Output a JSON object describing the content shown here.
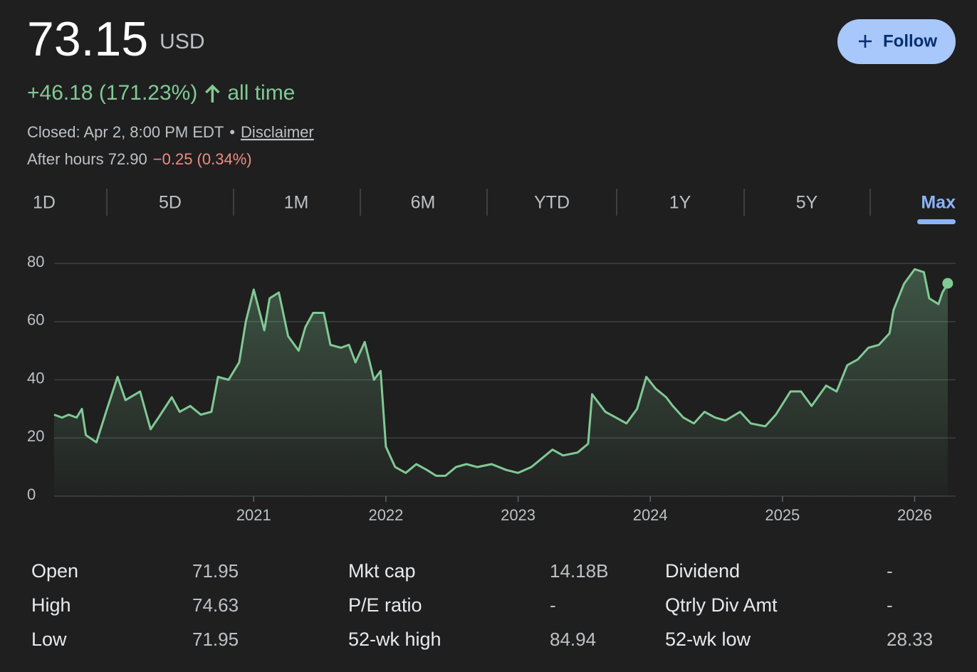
{
  "header": {
    "price": "73.15",
    "currency": "USD",
    "change": "+46.18 (171.23%)",
    "period": "all time",
    "closed": "Closed: Apr 2, 8:00 PM EDT",
    "separator": "•",
    "disclaimer": "Disclaimer",
    "after_hours": "After hours 72.90",
    "after_hours_change": "−0.25 (0.34%)",
    "follow": "Follow"
  },
  "tabs": {
    "items": [
      "1D",
      "5D",
      "1M",
      "6M",
      "YTD",
      "1Y",
      "5Y",
      "Max"
    ],
    "active": 7
  },
  "chart_data": {
    "type": "line",
    "color": "#81c995",
    "grid": true,
    "x": [
      2019.49,
      2019.55,
      2019.6,
      2019.66,
      2019.7,
      2019.73,
      2019.81,
      2019.89,
      2019.97,
      2020.03,
      2020.14,
      2020.22,
      2020.28,
      2020.38,
      2020.44,
      2020.52,
      2020.6,
      2020.68,
      2020.73,
      2020.81,
      2020.89,
      2020.94,
      2021.0,
      2021.08,
      2021.12,
      2021.19,
      2021.26,
      2021.34,
      2021.39,
      2021.45,
      2021.53,
      2021.58,
      2021.66,
      2021.72,
      2021.77,
      2021.84,
      2021.91,
      2021.96,
      2022.0,
      2022.07,
      2022.15,
      2022.23,
      2022.31,
      2022.38,
      2022.45,
      2022.53,
      2022.61,
      2022.69,
      2022.8,
      2022.91,
      2023.0,
      2023.1,
      2023.18,
      2023.26,
      2023.34,
      2023.45,
      2023.53,
      2023.56,
      2023.66,
      2023.74,
      2023.82,
      2023.9,
      2023.97,
      2024.04,
      2024.12,
      2024.17,
      2024.25,
      2024.33,
      2024.41,
      2024.49,
      2024.57,
      2024.68,
      2024.76,
      2024.87,
      2024.95,
      2025.06,
      2025.14,
      2025.22,
      2025.33,
      2025.41,
      2025.49,
      2025.57,
      2025.65,
      2025.73,
      2025.81,
      2025.84,
      2025.92,
      2026.0,
      2026.07,
      2026.11,
      2026.18,
      2026.21,
      2026.25
    ],
    "values": [
      28,
      27,
      28,
      27,
      30,
      21,
      18.5,
      30,
      41,
      33,
      36,
      23,
      27,
      34,
      29,
      31,
      28,
      29,
      41,
      40,
      46,
      60,
      71,
      57,
      68,
      70,
      55,
      50,
      58,
      63,
      63,
      52,
      51,
      52,
      46,
      53,
      40,
      43,
      17,
      10,
      8,
      11,
      9,
      7,
      7,
      10,
      11,
      10,
      11,
      9,
      8,
      10,
      13,
      16,
      14,
      15,
      18,
      35,
      29,
      27,
      25,
      30,
      41,
      37,
      34,
      31,
      27,
      25,
      29,
      27,
      26,
      29,
      25,
      24,
      28,
      36,
      36,
      31,
      38,
      36,
      45,
      47,
      51,
      52,
      56,
      64,
      73,
      78,
      77,
      68,
      66,
      70,
      73.15
    ],
    "xlim": [
      2019.49,
      2026.31
    ],
    "xticks": [
      2021,
      2022,
      2023,
      2024,
      2025,
      2026
    ],
    "ylim": [
      0,
      80
    ],
    "yticks": [
      0,
      20,
      40,
      60,
      80
    ]
  },
  "stats": [
    [
      [
        "Open",
        "71.95"
      ],
      [
        "High",
        "74.63"
      ],
      [
        "Low",
        "71.95"
      ]
    ],
    [
      [
        "Mkt cap",
        "14.18B"
      ],
      [
        "P/E ratio",
        "-"
      ],
      [
        "52-wk high",
        "84.94"
      ]
    ],
    [
      [
        "Dividend",
        "-"
      ],
      [
        "Qtrly Div Amt",
        "-"
      ],
      [
        "52-wk low",
        "28.33"
      ]
    ]
  ]
}
